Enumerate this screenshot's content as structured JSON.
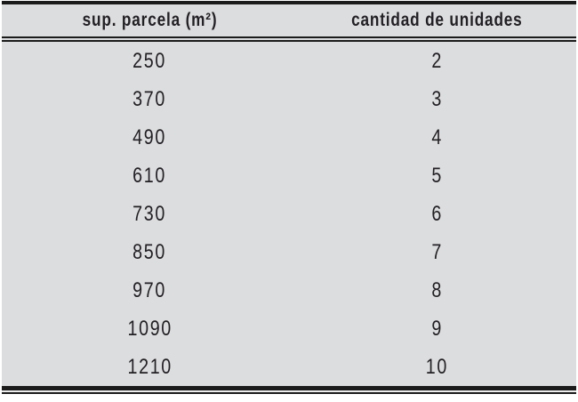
{
  "chart_data": {
    "type": "table",
    "columns": [
      "sup. parcela (m²)",
      "cantidad de unidades"
    ],
    "rows": [
      [
        "250",
        "2"
      ],
      [
        "370",
        "3"
      ],
      [
        "490",
        "4"
      ],
      [
        "610",
        "5"
      ],
      [
        "730",
        "6"
      ],
      [
        "850",
        "7"
      ],
      [
        "970",
        "8"
      ],
      [
        "1090",
        "9"
      ],
      [
        "1210",
        "10"
      ]
    ]
  },
  "colors": {
    "table_bg": "#dcddde",
    "text": "#232025",
    "rule": "#1b1b1b",
    "page_bg": "#ffffff"
  }
}
